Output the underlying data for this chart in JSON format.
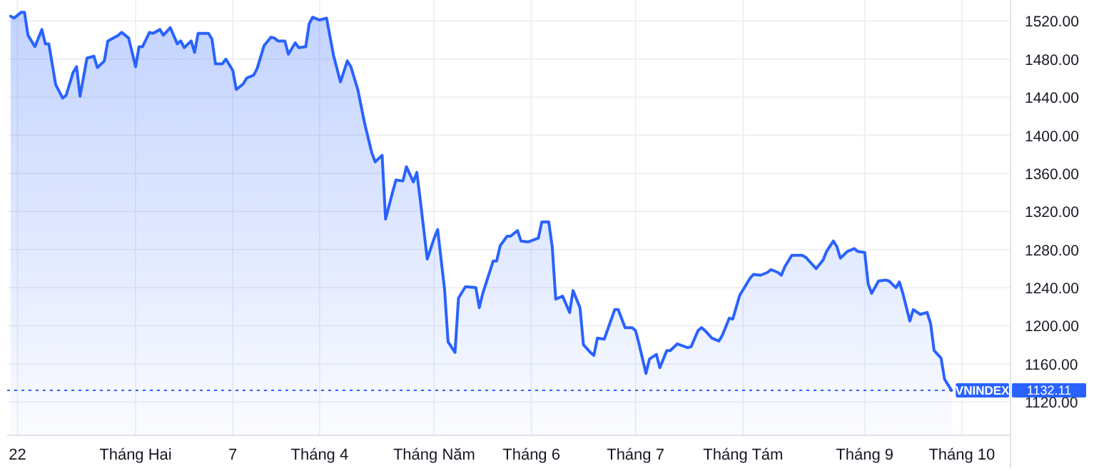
{
  "chart_data": {
    "type": "area",
    "grid": true,
    "marker": "none",
    "line_style": "solid",
    "xlim": [
      "2022-01-01",
      "2022-10-17"
    ],
    "xticks": [
      {
        "value": "2022-01-04",
        "label": "22"
      },
      {
        "value": "2022-02-07",
        "label": "Tháng Hai"
      },
      {
        "value": "2022-03-07",
        "label": "7"
      },
      {
        "value": "2022-04-01",
        "label": "Tháng 4"
      },
      {
        "value": "2022-05-04",
        "label": "Tháng Năm"
      },
      {
        "value": "2022-06-01",
        "label": "Tháng 6"
      },
      {
        "value": "2022-07-01",
        "label": "Tháng 7"
      },
      {
        "value": "2022-08-01",
        "label": "Tháng Tám"
      },
      {
        "value": "2022-09-05",
        "label": "Tháng 9"
      },
      {
        "value": "2022-10-03",
        "label": "Tháng 10"
      }
    ],
    "ylim": [
      1085,
      1542
    ],
    "yticks": [
      {
        "value": 1120,
        "label": "1120.00"
      },
      {
        "value": 1160,
        "label": "1160.00"
      },
      {
        "value": 1200,
        "label": "1200.00"
      },
      {
        "value": 1240,
        "label": "1240.00"
      },
      {
        "value": 1280,
        "label": "1280.00"
      },
      {
        "value": 1320,
        "label": "1320.00"
      },
      {
        "value": 1360,
        "label": "1360.00"
      },
      {
        "value": 1400,
        "label": "1400.00"
      },
      {
        "value": 1440,
        "label": "1440.00"
      },
      {
        "value": 1480,
        "label": "1480.00"
      },
      {
        "value": 1520,
        "label": "1520.00"
      }
    ],
    "ref_lines": [
      {
        "axis": "y",
        "value": 1132.11,
        "label": "1132.11",
        "color": "#2962ff",
        "line_style": "dotted"
      }
    ],
    "series": [
      {
        "name": "VNINDEX",
        "color": "#2962ff",
        "x": [
          "2022-01-02",
          "2022-01-03",
          "2022-01-05",
          "2022-01-06",
          "2022-01-07",
          "2022-01-09",
          "2022-01-11",
          "2022-01-12",
          "2022-01-13",
          "2022-01-15",
          "2022-01-17",
          "2022-01-18",
          "2022-01-20",
          "2022-01-21",
          "2022-01-22",
          "2022-01-24",
          "2022-01-26",
          "2022-01-27",
          "2022-01-29",
          "2022-01-30",
          "2022-02-02",
          "2022-02-03",
          "2022-02-05",
          "2022-02-07",
          "2022-02-08",
          "2022-02-09",
          "2022-02-11",
          "2022-02-12",
          "2022-02-14",
          "2022-02-15",
          "2022-02-17",
          "2022-02-19",
          "2022-02-20",
          "2022-02-21",
          "2022-02-23",
          "2022-02-24",
          "2022-02-25",
          "2022-02-28",
          "2022-03-01",
          "2022-03-02",
          "2022-03-04",
          "2022-03-05",
          "2022-03-07",
          "2022-03-08",
          "2022-03-10",
          "2022-03-11",
          "2022-03-13",
          "2022-03-14",
          "2022-03-16",
          "2022-03-18",
          "2022-03-19",
          "2022-03-20",
          "2022-03-22",
          "2022-03-23",
          "2022-03-25",
          "2022-03-26",
          "2022-03-28",
          "2022-03-29",
          "2022-03-30",
          "2022-04-01",
          "2022-04-03",
          "2022-04-05",
          "2022-04-07",
          "2022-04-09",
          "2022-04-10",
          "2022-04-12",
          "2022-04-14",
          "2022-04-16",
          "2022-04-17",
          "2022-04-19",
          "2022-04-20",
          "2022-04-22",
          "2022-04-23",
          "2022-04-25",
          "2022-04-26",
          "2022-04-28",
          "2022-04-29",
          "2022-04-30",
          "2022-05-02",
          "2022-05-04",
          "2022-05-05",
          "2022-05-07",
          "2022-05-08",
          "2022-05-10",
          "2022-05-11",
          "2022-05-13",
          "2022-05-16",
          "2022-05-17",
          "2022-05-18",
          "2022-05-21",
          "2022-05-22",
          "2022-05-23",
          "2022-05-25",
          "2022-05-26",
          "2022-05-28",
          "2022-05-29",
          "2022-05-31",
          "2022-06-03",
          "2022-06-04",
          "2022-06-06",
          "2022-06-07",
          "2022-06-08",
          "2022-06-10",
          "2022-06-12",
          "2022-06-13",
          "2022-06-15",
          "2022-06-16",
          "2022-06-18",
          "2022-06-19",
          "2022-06-20",
          "2022-06-22",
          "2022-06-25",
          "2022-06-26",
          "2022-06-28",
          "2022-06-30",
          "2022-07-01",
          "2022-07-02",
          "2022-07-04",
          "2022-07-05",
          "2022-07-07",
          "2022-07-08",
          "2022-07-10",
          "2022-07-11",
          "2022-07-13",
          "2022-07-16",
          "2022-07-17",
          "2022-07-19",
          "2022-07-20",
          "2022-07-21",
          "2022-07-23",
          "2022-07-25",
          "2022-07-26",
          "2022-07-28",
          "2022-07-29",
          "2022-07-31",
          "2022-08-02",
          "2022-08-03",
          "2022-08-04",
          "2022-08-06",
          "2022-08-08",
          "2022-08-09",
          "2022-08-11",
          "2022-08-12",
          "2022-08-13",
          "2022-08-15",
          "2022-08-18",
          "2022-08-19",
          "2022-08-20",
          "2022-08-22",
          "2022-08-24",
          "2022-08-25",
          "2022-08-27",
          "2022-08-28",
          "2022-08-29",
          "2022-08-31",
          "2022-09-02",
          "2022-09-03",
          "2022-09-05",
          "2022-09-06",
          "2022-09-07",
          "2022-09-09",
          "2022-09-11",
          "2022-09-12",
          "2022-09-14",
          "2022-09-15",
          "2022-09-16",
          "2022-09-18",
          "2022-09-19",
          "2022-09-21",
          "2022-09-23",
          "2022-09-24",
          "2022-09-25",
          "2022-09-27",
          "2022-09-28",
          "2022-09-30"
        ],
        "values": [
          1525,
          1523,
          1529,
          1529,
          1505,
          1493,
          1511,
          1496,
          1496,
          1453,
          1439,
          1442,
          1466,
          1472,
          1441,
          1481,
          1483,
          1471,
          1478,
          1499,
          1505,
          1508,
          1502,
          1472,
          1493,
          1493,
          1508,
          1507,
          1511,
          1505,
          1513,
          1496,
          1499,
          1492,
          1499,
          1487,
          1507,
          1507,
          1501,
          1475,
          1475,
          1480,
          1468,
          1448,
          1454,
          1460,
          1463,
          1470,
          1494,
          1503,
          1502,
          1499,
          1499,
          1485,
          1497,
          1492,
          1493,
          1517,
          1524,
          1521,
          1523,
          1484,
          1456,
          1478,
          1472,
          1448,
          1412,
          1382,
          1372,
          1379,
          1312,
          1340,
          1353,
          1352,
          1367,
          1351,
          1361,
          1332,
          1270,
          1292,
          1301,
          1238,
          1183,
          1172,
          1229,
          1241,
          1240,
          1219,
          1234,
          1268,
          1268,
          1284,
          1294,
          1294,
          1300,
          1289,
          1288,
          1292,
          1309,
          1309,
          1283,
          1228,
          1231,
          1214,
          1237,
          1219,
          1180,
          1172,
          1169,
          1187,
          1186,
          1217,
          1217,
          1198,
          1198,
          1195,
          1181,
          1150,
          1165,
          1170,
          1156,
          1174,
          1174,
          1181,
          1177,
          1178,
          1195,
          1198,
          1195,
          1187,
          1184,
          1190,
          1208,
          1207,
          1232,
          1244,
          1250,
          1254,
          1253,
          1256,
          1259,
          1256,
          1253,
          1262,
          1274,
          1274,
          1272,
          1268,
          1260,
          1269,
          1278,
          1289,
          1283,
          1271,
          1278,
          1281,
          1278,
          1277,
          1244,
          1234,
          1247,
          1248,
          1247,
          1240,
          1246,
          1234,
          1205,
          1217,
          1212,
          1214,
          1202,
          1174,
          1166,
          1144,
          1132.11
        ]
      }
    ]
  }
}
